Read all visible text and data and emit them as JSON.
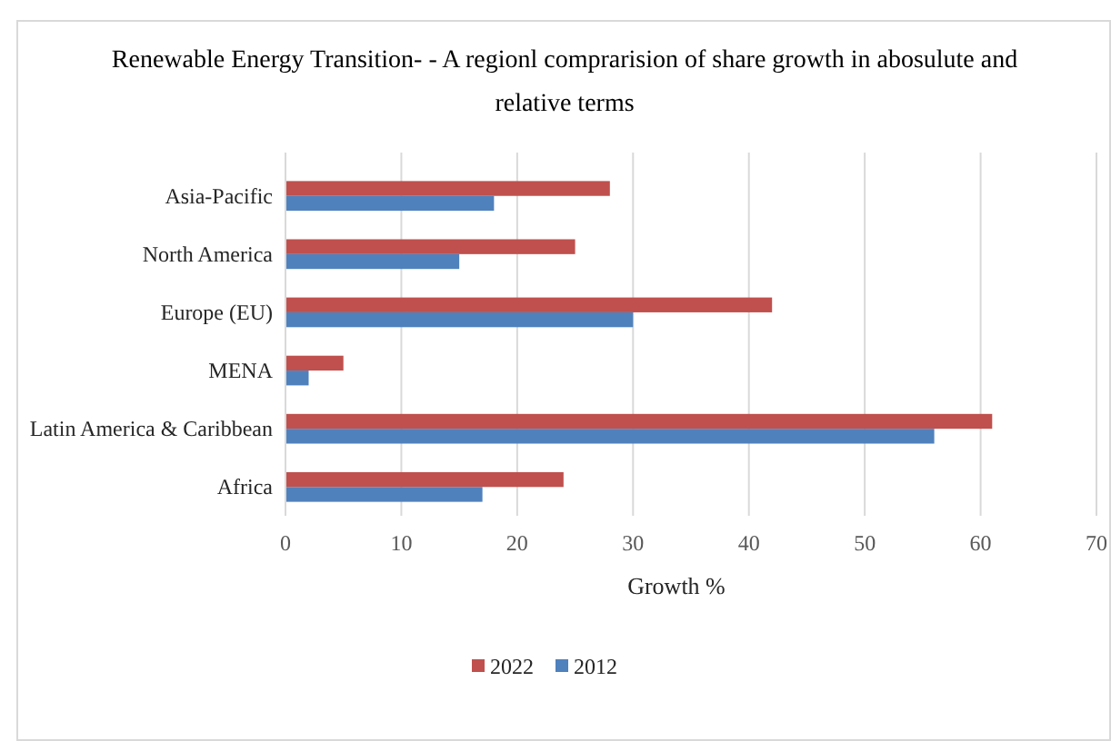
{
  "chart_data": {
    "type": "bar",
    "orientation": "horizontal",
    "title": "Renewable Energy Transition- - A regionl comprarision of share growth in abosulute and relative terms",
    "xlabel": "Growth %",
    "categories": [
      "Asia-Pacific",
      "North America",
      "Europe (EU)",
      "MENA",
      "Latin America & Caribbean",
      "Africa"
    ],
    "series": [
      {
        "name": "2022",
        "color": "#c0504d",
        "values": [
          28,
          25,
          42,
          5,
          61,
          24
        ]
      },
      {
        "name": "2012",
        "color": "#4f81bd",
        "values": [
          18,
          15,
          30,
          2,
          56,
          17
        ]
      }
    ],
    "xlim": [
      0,
      70
    ],
    "xticks": [
      0,
      10,
      20,
      30,
      40,
      50,
      60,
      70
    ],
    "grid": "x",
    "legend": "bottom"
  }
}
